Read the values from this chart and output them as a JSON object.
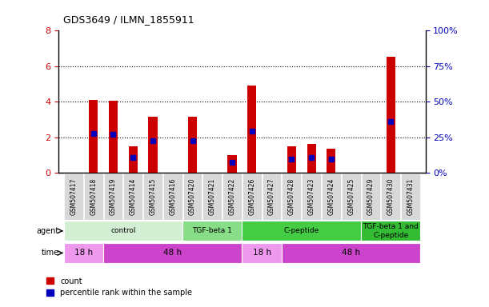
{
  "title": "GDS3649 / ILMN_1855911",
  "samples": [
    "GSM507417",
    "GSM507418",
    "GSM507419",
    "GSM507414",
    "GSM507415",
    "GSM507416",
    "GSM507420",
    "GSM507421",
    "GSM507422",
    "GSM507426",
    "GSM507427",
    "GSM507428",
    "GSM507423",
    "GSM507424",
    "GSM507425",
    "GSM507429",
    "GSM507430",
    "GSM507431"
  ],
  "count_values": [
    0.0,
    4.1,
    4.05,
    1.5,
    3.15,
    0.0,
    3.15,
    0.0,
    1.0,
    4.9,
    0.0,
    1.5,
    1.6,
    1.35,
    0.0,
    0.0,
    6.55,
    0.0
  ],
  "percentile_values_left": [
    0.0,
    2.2,
    2.15,
    0.85,
    1.8,
    0.0,
    1.8,
    0.0,
    0.6,
    2.35,
    0.0,
    0.75,
    0.85,
    0.75,
    0.0,
    0.0,
    2.9,
    0.0
  ],
  "bar_color": "#cc0000",
  "pct_color": "#0000bb",
  "ylim_left": [
    0,
    8
  ],
  "ylim_right": [
    0,
    100
  ],
  "yticks_left": [
    0,
    2,
    4,
    6,
    8
  ],
  "yticks_right": [
    0,
    25,
    50,
    75,
    100
  ],
  "ytick_labels_right": [
    "0%",
    "25%",
    "50%",
    "75%",
    "100%"
  ],
  "agent_groups": [
    {
      "label": "control",
      "start": 0,
      "end": 6,
      "color": "#d4f0d4"
    },
    {
      "label": "TGF-beta 1",
      "start": 6,
      "end": 9,
      "color": "#88dd88"
    },
    {
      "label": "C-peptide",
      "start": 9,
      "end": 15,
      "color": "#44cc44"
    },
    {
      "label": "TGF-beta 1 and\nC-peptide",
      "start": 15,
      "end": 18,
      "color": "#33bb33"
    }
  ],
  "time_groups": [
    {
      "label": "18 h",
      "start": 0,
      "end": 2,
      "color": "#ee99ee"
    },
    {
      "label": "48 h",
      "start": 2,
      "end": 9,
      "color": "#cc44cc"
    },
    {
      "label": "18 h",
      "start": 9,
      "end": 11,
      "color": "#ee99ee"
    },
    {
      "label": "48 h",
      "start": 11,
      "end": 18,
      "color": "#cc44cc"
    }
  ],
  "bar_width": 0.45,
  "background_color": "#ffffff",
  "tick_label_color_left": "#cc0000",
  "tick_label_color_right": "#0000bb"
}
